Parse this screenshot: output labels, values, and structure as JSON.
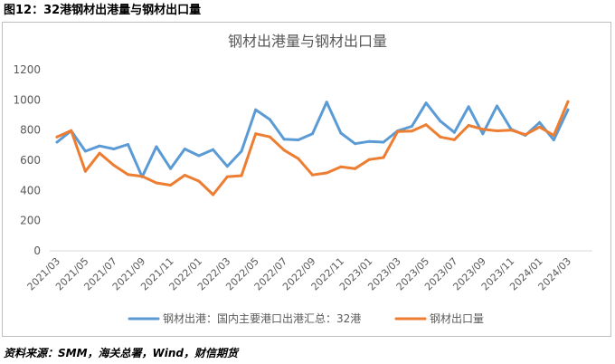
{
  "figure": {
    "caption": "图12：32港钢材出港量与钢材出口量",
    "source": "资料来源：SMM，海关总署，Wind，财信期货"
  },
  "chart_data": {
    "type": "line",
    "title": "钢材出港量与钢材出口量",
    "x_tick_labels": [
      "2021/03",
      "2021/05",
      "2021/07",
      "2021/09",
      "2021/11",
      "2022/01",
      "2022/03",
      "2022/05",
      "2022/07",
      "2022/09",
      "2022/11",
      "2023/01",
      "2023/03",
      "2023/05",
      "2023/07",
      "2023/09",
      "2023/11",
      "2024/01",
      "2024/03"
    ],
    "y_ticks": [
      0,
      200,
      400,
      600,
      800,
      1000,
      1200
    ],
    "ylim": [
      0,
      1200
    ],
    "grid": false,
    "legend_position": "bottom",
    "series": [
      {
        "name": "钢材出港：国内主要港口出港汇总：32港",
        "color": "#5B9BD5",
        "values": [
          720,
          795,
          660,
          695,
          675,
          705,
          490,
          690,
          545,
          675,
          630,
          670,
          560,
          660,
          935,
          870,
          740,
          735,
          775,
          985,
          780,
          710,
          725,
          720,
          795,
          825,
          980,
          860,
          785,
          955,
          775,
          960,
          805,
          765,
          850,
          735,
          935
        ]
      },
      {
        "name": "钢材出口量",
        "color": "#ED7D31",
        "values": [
          754,
          797,
          527,
          647,
          567,
          505,
          494,
          450,
          435,
          501,
          462,
          372,
          491,
          498,
          776,
          755,
          667,
          611,
          503,
          516,
          556,
          545,
          605,
          618,
          790,
          794,
          836,
          754,
          736,
          831,
          806,
          795,
          800,
          770,
          820,
          765,
          989
        ]
      }
    ]
  }
}
